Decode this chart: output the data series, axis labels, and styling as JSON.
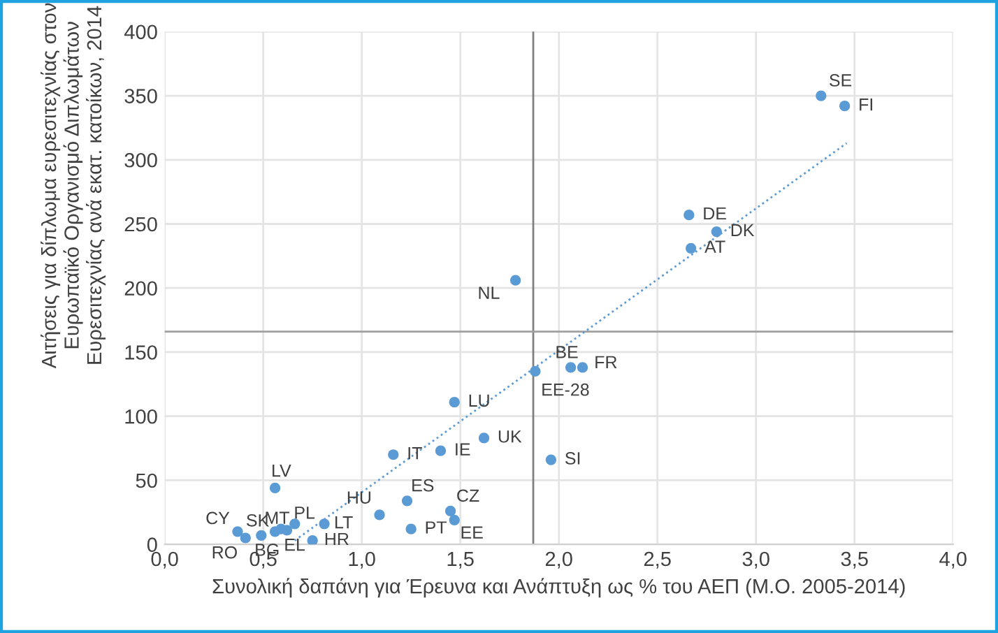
{
  "chart_data": {
    "type": "scatter",
    "xlabel": "Συνολική δαπάνη για Έρευνα και Ανάπτυξη ως % του ΑΕΠ (Μ.Ο. 2005-2014)",
    "ylabel": "Αιτήσεις για δίπλωμα ευρεσιτεχνίας στον Ευρωπαϊκό Οργανισμό Διπλωμάτων Ευρεσιτεχνίας ανά εκατ. κατοίκων, 2014",
    "xlim": [
      0,
      4
    ],
    "ylim": [
      0,
      400
    ],
    "xticks": [
      {
        "value": 0,
        "label": "0,0"
      },
      {
        "value": 0.5,
        "label": "0,5"
      },
      {
        "value": 1,
        "label": "1,0"
      },
      {
        "value": 1.5,
        "label": "1,5"
      },
      {
        "value": 2,
        "label": "2,0"
      },
      {
        "value": 2.5,
        "label": "2,5"
      },
      {
        "value": 3,
        "label": "3,0"
      },
      {
        "value": 3.5,
        "label": "3,5"
      },
      {
        "value": 4,
        "label": "4,0"
      }
    ],
    "yticks": [
      0,
      50,
      100,
      150,
      200,
      250,
      300,
      350,
      400
    ],
    "grid": true,
    "series": [
      {
        "marker": "circle",
        "color": "#5b9bd5",
        "x": [
          3.33,
          3.45,
          2.66,
          2.8,
          2.67,
          1.78,
          2.06,
          2.12,
          1.88,
          1.47,
          1.62,
          1.16,
          1.4,
          1.96,
          0.56,
          1.09,
          1.23,
          1.45,
          1.47,
          1.25,
          0.81,
          0.66,
          0.59,
          0.62,
          0.56,
          0.49,
          0.37,
          0.41,
          0.75
        ],
        "values": [
          350,
          342,
          257,
          244,
          231,
          206,
          138,
          138,
          135,
          111,
          83,
          70,
          73,
          66,
          44,
          23,
          34,
          26,
          19,
          12,
          16,
          16,
          12,
          11,
          10,
          7,
          10,
          5,
          3
        ]
      },
      {
        "type": "line",
        "line_style": "dotted",
        "color": "#5b9bd5",
        "x": [
          0.66,
          3.46
        ],
        "values": [
          3,
          313
        ]
      }
    ],
    "ref_lines": [
      {
        "axis": "x",
        "value": 1.87,
        "color": "#808080"
      },
      {
        "axis": "y",
        "value": 166,
        "color": "#a0a0a0"
      }
    ],
    "annotations": [
      {
        "text": "SE",
        "x": 3.33,
        "y": 350
      },
      {
        "text": "FI",
        "x": 3.45,
        "y": 342
      },
      {
        "text": "DE",
        "x": 2.66,
        "y": 257
      },
      {
        "text": "DK",
        "x": 2.8,
        "y": 244
      },
      {
        "text": "AT",
        "x": 2.67,
        "y": 231
      },
      {
        "text": "NL",
        "x": 1.78,
        "y": 206
      },
      {
        "text": "BE",
        "x": 2.06,
        "y": 138
      },
      {
        "text": "FR",
        "x": 2.12,
        "y": 138
      },
      {
        "text": "EE-28",
        "x": 1.88,
        "y": 135
      },
      {
        "text": "LU",
        "x": 1.47,
        "y": 111
      },
      {
        "text": "UK",
        "x": 1.62,
        "y": 83
      },
      {
        "text": "IT",
        "x": 1.16,
        "y": 70
      },
      {
        "text": "IE",
        "x": 1.4,
        "y": 73
      },
      {
        "text": "SI",
        "x": 1.96,
        "y": 66
      },
      {
        "text": "LV",
        "x": 0.56,
        "y": 44
      },
      {
        "text": "HU",
        "x": 1.09,
        "y": 23
      },
      {
        "text": "ES",
        "x": 1.23,
        "y": 34
      },
      {
        "text": "CZ",
        "x": 1.45,
        "y": 26
      },
      {
        "text": "EE",
        "x": 1.47,
        "y": 19
      },
      {
        "text": "PT",
        "x": 1.25,
        "y": 12
      },
      {
        "text": "LT",
        "x": 0.81,
        "y": 16
      },
      {
        "text": "PL",
        "x": 0.66,
        "y": 16
      },
      {
        "text": "MT",
        "x": 0.59,
        "y": 12
      },
      {
        "text": "EL",
        "x": 0.62,
        "y": 11
      },
      {
        "text": "SK",
        "x": 0.56,
        "y": 10
      },
      {
        "text": "BG",
        "x": 0.49,
        "y": 7
      },
      {
        "text": "CY",
        "x": 0.37,
        "y": 10
      },
      {
        "text": "RO",
        "x": 0.41,
        "y": 5
      },
      {
        "text": "HR",
        "x": 0.75,
        "y": 3
      }
    ]
  }
}
